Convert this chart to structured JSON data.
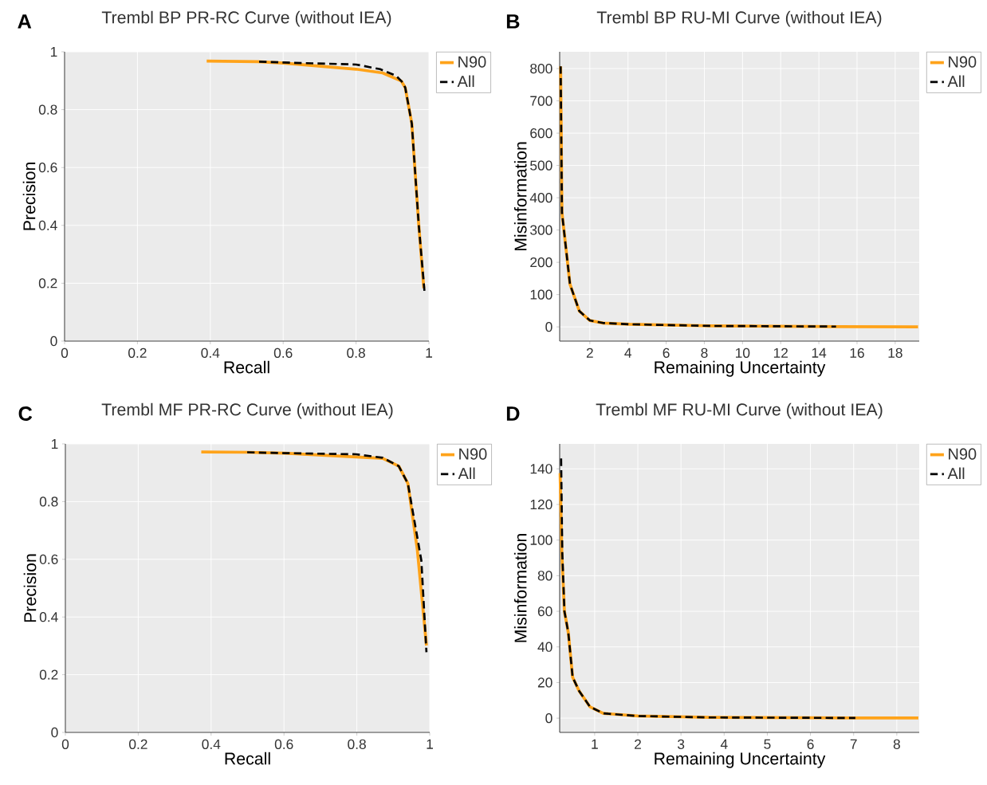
{
  "chart_data": [
    {
      "type": "line",
      "title": "Trembl BP PR-RC Curve (without IEA)",
      "xlabel": "Recall",
      "ylabel": "Precision",
      "annotations": [
        "A"
      ],
      "xlim": [
        0,
        1
      ],
      "ylim": [
        0,
        1
      ],
      "xticks": [
        0,
        0.2,
        0.4,
        0.6,
        0.8,
        1
      ],
      "yticks": [
        0,
        0.2,
        0.4,
        0.6,
        0.8,
        1
      ],
      "grid": true,
      "legend": "right",
      "series": [
        {
          "name": "N90",
          "color": "#ffa31a",
          "line_style": "solid",
          "x": [
            0.39,
            0.53,
            0.6,
            0.8,
            0.873,
            0.924,
            0.935,
            0.953,
            0.972,
            0.986
          ],
          "values": [
            0.968,
            0.966,
            0.961,
            0.94,
            0.927,
            0.899,
            0.876,
            0.752,
            0.403,
            0.183
          ]
        },
        {
          "name": "All",
          "color": "#000000",
          "line_style": "dashed",
          "x": [
            0.534,
            0.6,
            0.8,
            0.866,
            0.91,
            0.928,
            0.935,
            0.953,
            0.972,
            0.988
          ],
          "values": [
            0.966,
            0.963,
            0.956,
            0.94,
            0.917,
            0.894,
            0.876,
            0.752,
            0.403,
            0.169
          ]
        }
      ]
    },
    {
      "type": "line",
      "title": "Trembl BP RU-MI Curve (without IEA)",
      "xlabel": "Remaining Uncertainty",
      "ylabel": "Misinformation",
      "annotations": [
        "B"
      ],
      "xlim": [
        0.42,
        19.26
      ],
      "ylim": [
        -44,
        852
      ],
      "xticks": [
        2,
        4,
        6,
        8,
        10,
        12,
        14,
        16,
        18
      ],
      "yticks": [
        0,
        100,
        200,
        300,
        400,
        500,
        600,
        700,
        800
      ],
      "grid": true,
      "legend": "right",
      "series": [
        {
          "name": "N90",
          "color": "#ffa31a",
          "line_style": "solid",
          "x": [
            0.47,
            0.54,
            0.96,
            1.45,
            2.0,
            2.7,
            4.1,
            8.3,
            14.9,
            19.2
          ],
          "values": [
            807,
            354,
            132,
            49,
            20,
            12,
            8,
            3,
            1,
            0
          ]
        },
        {
          "name": "All",
          "color": "#000000",
          "line_style": "dashed",
          "x": [
            0.47,
            0.54,
            0.96,
            1.45,
            2.0,
            2.7,
            4.1,
            8.3,
            14.9
          ],
          "values": [
            807,
            354,
            132,
            49,
            20,
            12,
            8,
            3,
            1
          ]
        }
      ]
    },
    {
      "type": "line",
      "title": "Trembl MF PR-RC Curve (without IEA)",
      "xlabel": "Recall",
      "ylabel": "Precision",
      "annotations": [
        "C"
      ],
      "xlim": [
        0,
        1
      ],
      "ylim": [
        0,
        1
      ],
      "xticks": [
        0,
        0.2,
        0.4,
        0.6,
        0.8,
        1
      ],
      "yticks": [
        0,
        0.2,
        0.4,
        0.6,
        0.8,
        1
      ],
      "grid": true,
      "legend": "right",
      "series": [
        {
          "name": "N90",
          "color": "#ffa31a",
          "line_style": "solid",
          "x": [
            0.373,
            0.499,
            0.601,
            0.798,
            0.871,
            0.915,
            0.94,
            0.966,
            0.991
          ],
          "values": [
            0.972,
            0.971,
            0.968,
            0.955,
            0.95,
            0.923,
            0.863,
            0.633,
            0.301
          ]
        },
        {
          "name": "All",
          "color": "#000000",
          "line_style": "dashed",
          "x": [
            0.499,
            0.601,
            0.798,
            0.871,
            0.915,
            0.94,
            0.977,
            0.991
          ],
          "values": [
            0.971,
            0.968,
            0.964,
            0.952,
            0.923,
            0.863,
            0.596,
            0.278
          ]
        }
      ]
    },
    {
      "type": "line",
      "title": "Trembl MF RU-MI Curve (without IEA)",
      "xlabel": "Remaining Uncertainty",
      "ylabel": "Misinformation",
      "annotations": [
        "D"
      ],
      "xlim": [
        0.19,
        8.52
      ],
      "ylim": [
        -8,
        154
      ],
      "xticks": [
        1,
        2,
        3,
        4,
        5,
        6,
        7,
        8
      ],
      "yticks": [
        0,
        20,
        40,
        60,
        80,
        100,
        120,
        140
      ],
      "grid": true,
      "legend": "right",
      "series": [
        {
          "name": "N90",
          "color": "#ffa31a",
          "line_style": "solid",
          "x": [
            0.2,
            0.24,
            0.3,
            0.39,
            0.49,
            0.64,
            0.89,
            1.2,
            2.0,
            3.66,
            7.04,
            8.5
          ],
          "values": [
            137.6,
            92.9,
            60,
            48,
            23,
            15.3,
            6.4,
            2.7,
            1.2,
            0.4,
            0.1,
            0.1
          ]
        },
        {
          "name": "All",
          "color": "#000000",
          "line_style": "dashed",
          "x": [
            0.223,
            0.25,
            0.3,
            0.39,
            0.49,
            0.64,
            0.89,
            1.2,
            2.0,
            3.66,
            7.04
          ],
          "values": [
            145.8,
            92.9,
            60,
            48,
            23,
            15.3,
            6.4,
            2.7,
            1.2,
            0.4,
            0.1
          ]
        }
      ]
    }
  ]
}
